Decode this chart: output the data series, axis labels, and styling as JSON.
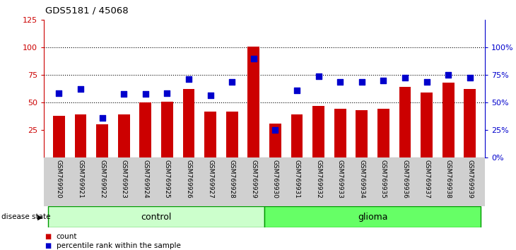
{
  "title": "GDS5181 / 45068",
  "samples": [
    "GSM769920",
    "GSM769921",
    "GSM769922",
    "GSM769923",
    "GSM769924",
    "GSM769925",
    "GSM769926",
    "GSM769927",
    "GSM769928",
    "GSM769929",
    "GSM769930",
    "GSM769931",
    "GSM769932",
    "GSM769933",
    "GSM769934",
    "GSM769935",
    "GSM769936",
    "GSM769937",
    "GSM769938",
    "GSM769939"
  ],
  "counts": [
    38,
    39,
    30,
    39,
    50,
    51,
    62,
    42,
    42,
    101,
    31,
    39,
    47,
    44,
    43,
    44,
    64,
    59,
    68,
    62
  ],
  "percentiles": [
    47,
    50,
    29,
    46,
    46,
    47,
    57,
    45,
    55,
    72,
    20,
    49,
    59,
    55,
    55,
    56,
    58,
    55,
    60,
    58
  ],
  "groups": {
    "control": [
      0,
      10
    ],
    "glioma": [
      10,
      20
    ]
  },
  "bar_color": "#cc0000",
  "dot_color": "#0000cc",
  "left_axis_color": "#cc0000",
  "right_axis_color": "#0000cc",
  "left_ylim": [
    0,
    125
  ],
  "left_yticks": [
    25,
    50,
    75,
    100,
    125
  ],
  "right_yticks_pos": [
    0,
    25,
    50,
    75,
    100
  ],
  "right_yticklabels": [
    "0%",
    "25%",
    "50%",
    "75%",
    "100%"
  ],
  "dotted_lines": [
    50,
    75,
    100
  ],
  "control_color": "#ccffcc",
  "glioma_color": "#66ff66",
  "group_border_color": "#009900",
  "legend_count_label": "count",
  "legend_pct_label": "percentile rank within the sample",
  "disease_state_label": "disease state",
  "control_label": "control",
  "glioma_label": "glioma",
  "bg_color": "#d0d0d0"
}
